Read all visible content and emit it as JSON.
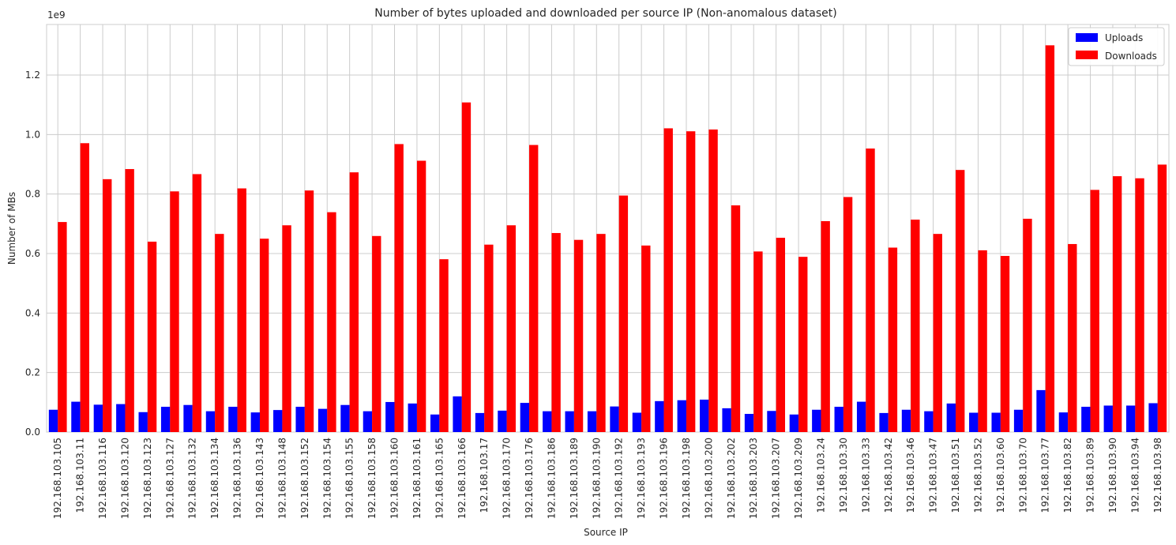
{
  "chart_data": {
    "type": "bar",
    "title": "Number of bytes uploaded and downloaded per source IP (Non-anomalous dataset)",
    "xlabel": "Source IP",
    "ylabel": "Number of MBs",
    "y_offset_label": "1e9",
    "ylim": [
      0,
      1.37
    ],
    "y_ticks": [
      0.0,
      0.2,
      0.4,
      0.6,
      0.8,
      1.0,
      1.2
    ],
    "y_tick_labels": [
      "0.0",
      "0.2",
      "0.4",
      "0.6",
      "0.8",
      "1.0",
      "1.2"
    ],
    "grid": true,
    "legend_position": "top-right",
    "categories": [
      "192.168.103.105",
      "192.168.103.11",
      "192.168.103.116",
      "192.168.103.120",
      "192.168.103.123",
      "192.168.103.127",
      "192.168.103.132",
      "192.168.103.134",
      "192.168.103.136",
      "192.168.103.143",
      "192.168.103.148",
      "192.168.103.152",
      "192.168.103.154",
      "192.168.103.155",
      "192.168.103.158",
      "192.168.103.160",
      "192.168.103.161",
      "192.168.103.165",
      "192.168.103.166",
      "192.168.103.17",
      "192.168.103.170",
      "192.168.103.176",
      "192.168.103.186",
      "192.168.103.189",
      "192.168.103.190",
      "192.168.103.192",
      "192.168.103.193",
      "192.168.103.196",
      "192.168.103.198",
      "192.168.103.200",
      "192.168.103.202",
      "192.168.103.203",
      "192.168.103.207",
      "192.168.103.209",
      "192.168.103.24",
      "192.168.103.30",
      "192.168.103.33",
      "192.168.103.42",
      "192.168.103.46",
      "192.168.103.47",
      "192.168.103.51",
      "192.168.103.52",
      "192.168.103.60",
      "192.168.103.70",
      "192.168.103.77",
      "192.168.103.82",
      "192.168.103.89",
      "192.168.103.90",
      "192.168.103.94",
      "192.168.103.98"
    ],
    "series": [
      {
        "name": "Uploads",
        "color": "#0000ff",
        "values": [
          0.075,
          0.102,
          0.092,
          0.094,
          0.067,
          0.085,
          0.091,
          0.07,
          0.085,
          0.066,
          0.074,
          0.085,
          0.078,
          0.091,
          0.07,
          0.101,
          0.096,
          0.059,
          0.12,
          0.064,
          0.072,
          0.098,
          0.07,
          0.07,
          0.07,
          0.086,
          0.065,
          0.104,
          0.107,
          0.109,
          0.08,
          0.061,
          0.071,
          0.059,
          0.075,
          0.085,
          0.102,
          0.064,
          0.075,
          0.07,
          0.096,
          0.065,
          0.065,
          0.075,
          0.141,
          0.066,
          0.085,
          0.089,
          0.089,
          0.097
        ]
      },
      {
        "name": "Downloads",
        "color": "#ff0000",
        "values": [
          0.706,
          0.971,
          0.85,
          0.884,
          0.64,
          0.809,
          0.867,
          0.666,
          0.819,
          0.65,
          0.695,
          0.812,
          0.739,
          0.873,
          0.659,
          0.968,
          0.912,
          0.581,
          1.108,
          0.63,
          0.695,
          0.965,
          0.669,
          0.646,
          0.666,
          0.795,
          0.627,
          1.021,
          1.011,
          1.017,
          0.762,
          0.607,
          0.653,
          0.589,
          0.709,
          0.79,
          0.953,
          0.62,
          0.714,
          0.666,
          0.881,
          0.611,
          0.592,
          0.717,
          1.3,
          0.632,
          0.814,
          0.86,
          0.853,
          0.899
        ]
      }
    ]
  }
}
